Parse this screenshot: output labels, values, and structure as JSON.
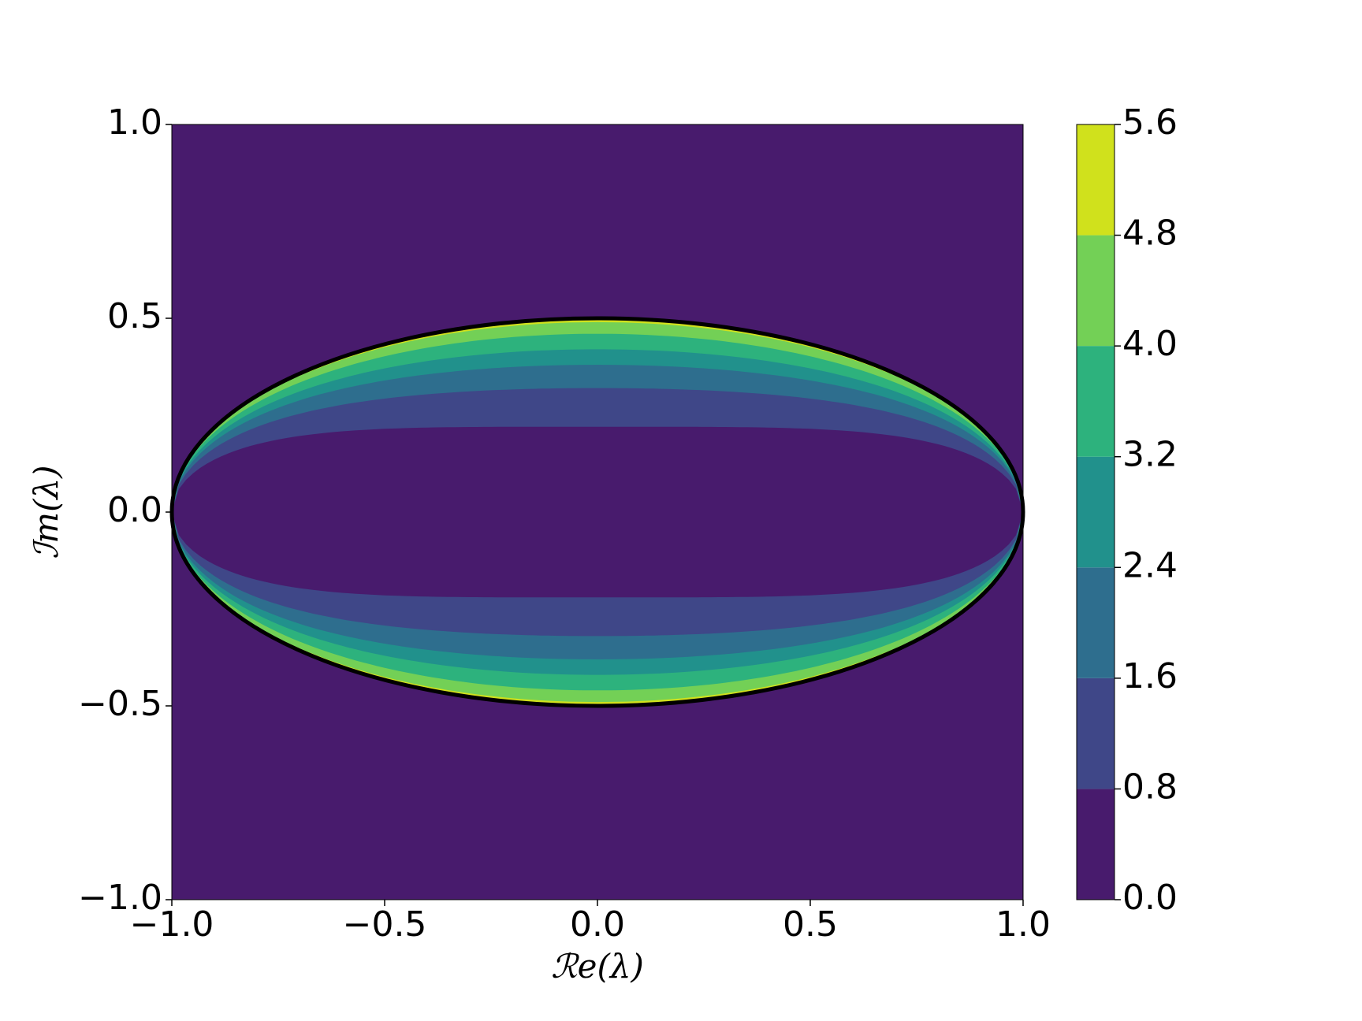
{
  "chart_data": {
    "type": "contour",
    "x_label": "ℛe(λ)",
    "y_label": "ℐm(λ)",
    "xlim": [
      -1.0,
      1.0
    ],
    "ylim": [
      -1.0,
      1.0
    ],
    "xticks": [
      {
        "value": -1.0,
        "label": "−1.0"
      },
      {
        "value": -0.5,
        "label": "−0.5"
      },
      {
        "value": 0,
        "label": "0.0"
      },
      {
        "value": 0.5,
        "label": "0.5"
      },
      {
        "value": 1.0,
        "label": "1.0"
      }
    ],
    "yticks": [
      {
        "value": -1.0,
        "label": "−1.0"
      },
      {
        "value": -0.5,
        "label": "−0.5"
      },
      {
        "value": 0,
        "label": "0.0"
      },
      {
        "value": 0.5,
        "label": "0.5"
      },
      {
        "value": 1.0,
        "label": "1.0"
      }
    ],
    "ellipse": {
      "re_semi": 1.0,
      "im_semi": 0.5,
      "color": "#000000"
    },
    "boundary_im_at_re0": [
      0.22,
      0.32,
      0.38,
      0.42,
      0.46,
      0.49
    ],
    "colorbar": {
      "ticks": [
        {
          "value": 0,
          "label": "0.0"
        },
        {
          "value": 0.8,
          "label": "0.8"
        },
        {
          "value": 1.6,
          "label": "1.6"
        },
        {
          "value": 2.4,
          "label": "2.4"
        },
        {
          "value": 3.2,
          "label": "3.2"
        },
        {
          "value": 4.0,
          "label": "4.0"
        },
        {
          "value": 4.8,
          "label": "4.8"
        },
        {
          "value": 5.6,
          "label": "5.6"
        }
      ],
      "colors": [
        "#481b6d",
        "#3f4788",
        "#2e6e8e",
        "#21918c",
        "#2db27d",
        "#73d056",
        "#d0e11c"
      ]
    }
  }
}
